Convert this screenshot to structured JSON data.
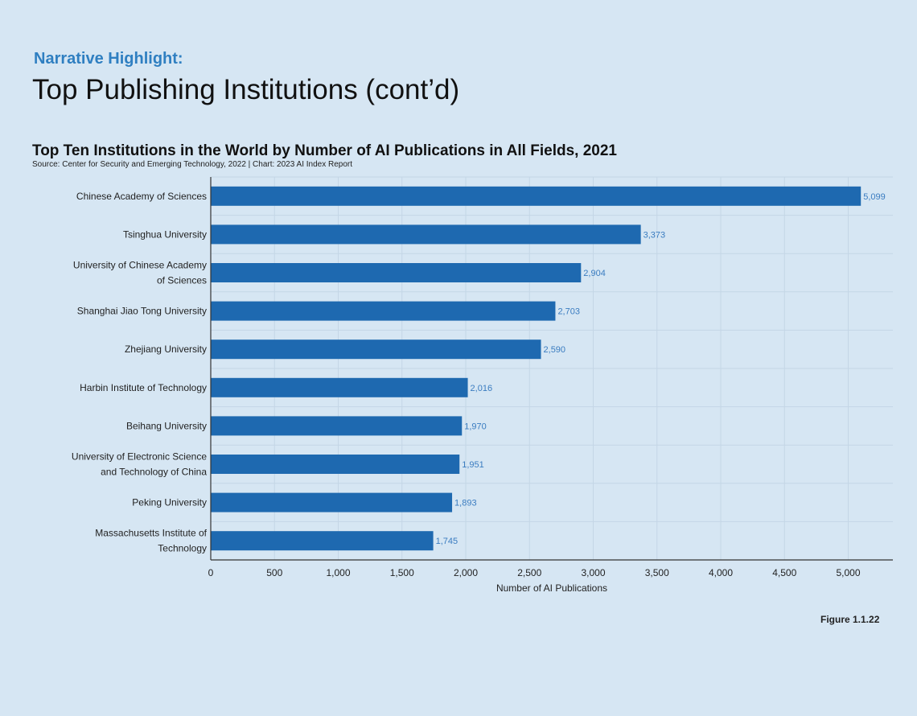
{
  "header": {
    "kicker": "Narrative Highlight:",
    "headline": "Top Publishing Institutions (cont’d)"
  },
  "chart_data": {
    "type": "bar",
    "orientation": "horizontal",
    "title": "Top Ten Institutions in the World by Number of AI Publications in All Fields, 2021",
    "source": "Source: Center for Security and Emerging Technology, 2022 | Chart: 2023 AI Index Report",
    "categories": [
      [
        "Chinese Academy of Sciences"
      ],
      [
        "Tsinghua University"
      ],
      [
        "University of Chinese Academy",
        "of Sciences"
      ],
      [
        "Shanghai Jiao Tong University"
      ],
      [
        "Zhejiang University"
      ],
      [
        "Harbin Institute of Technology"
      ],
      [
        "Beihang University"
      ],
      [
        "University of Electronic Science",
        "and Technology of China"
      ],
      [
        "Peking University"
      ],
      [
        "Massachusetts Institute of",
        "Technology"
      ]
    ],
    "values": [
      5099,
      3373,
      2904,
      2703,
      2590,
      2016,
      1970,
      1951,
      1893,
      1745
    ],
    "value_labels": [
      "5,099",
      "3,373",
      "2,904",
      "2,703",
      "2,590",
      "2,016",
      "1,970",
      "1,951",
      "1,893",
      "1,745"
    ],
    "xlabel": "Number of AI Publications",
    "xlim": [
      0,
      5350
    ],
    "xticks": [
      0,
      500,
      1000,
      1500,
      2000,
      2500,
      3000,
      3500,
      4000,
      4500,
      5000
    ],
    "xtick_labels": [
      "0",
      "500",
      "1,000",
      "1,500",
      "2,000",
      "2,500",
      "3,000",
      "3,500",
      "4,000",
      "4,500",
      "5,000"
    ],
    "grid": true,
    "colors": {
      "bar": "#1e69b0",
      "value_label": "#3a7cc0",
      "grid": "#c4d6e6",
      "axis": "#333333"
    }
  },
  "footer": {
    "figure": "Figure 1.1.22"
  }
}
